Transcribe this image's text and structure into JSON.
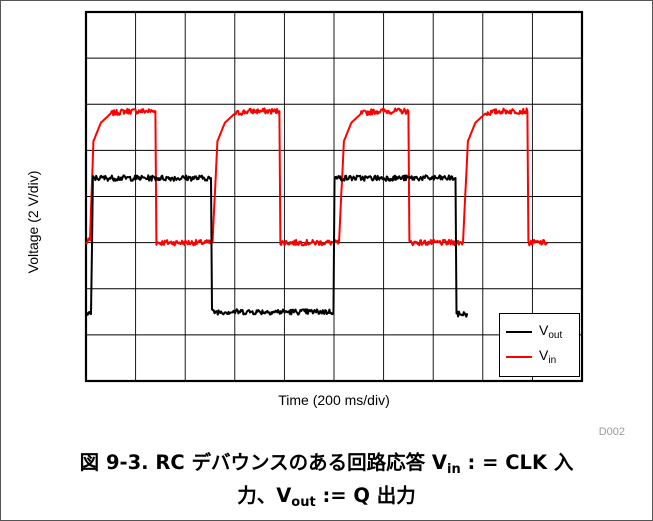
{
  "chart_data": {
    "type": "line",
    "ylabel": "Voltage (2 V/div)",
    "xlabel": "Time (200 ms/div)",
    "grid": true,
    "xlim": [
      0,
      10
    ],
    "ylim": [
      0,
      8
    ],
    "legend_position": "bottom-right",
    "series": [
      {
        "name": "Vin",
        "name_parts": [
          "V",
          "in"
        ],
        "color": "#ff0000",
        "description": "square wave, ~2.5 div amplitude, rise with RC",
        "points": [
          [
            0,
            3.0
          ],
          [
            0.08,
            3.05
          ],
          [
            0.15,
            5.2
          ],
          [
            0.3,
            5.6
          ],
          [
            0.5,
            5.8
          ],
          [
            0.8,
            5.85
          ],
          [
            1.4,
            5.85
          ],
          [
            1.42,
            3.0
          ],
          [
            2.55,
            3.0
          ],
          [
            2.65,
            5.2
          ],
          [
            2.8,
            5.6
          ],
          [
            3.0,
            5.8
          ],
          [
            3.3,
            5.85
          ],
          [
            3.9,
            5.85
          ],
          [
            3.92,
            3.0
          ],
          [
            5.1,
            3.0
          ],
          [
            5.2,
            5.2
          ],
          [
            5.35,
            5.6
          ],
          [
            5.55,
            5.8
          ],
          [
            5.85,
            5.85
          ],
          [
            6.5,
            5.85
          ],
          [
            6.52,
            3.0
          ],
          [
            7.6,
            3.0
          ],
          [
            7.7,
            5.2
          ],
          [
            7.85,
            5.6
          ],
          [
            8.05,
            5.8
          ],
          [
            8.35,
            5.85
          ],
          [
            8.9,
            5.85
          ],
          [
            8.92,
            3.0
          ],
          [
            9.3,
            3.0
          ]
        ]
      },
      {
        "name": "Vout",
        "name_parts": [
          "V",
          "out"
        ],
        "color": "#000000",
        "description": "square wave, ~2.5 div amplitude, sharp edges",
        "points": [
          [
            0,
            1.45
          ],
          [
            0.1,
            1.45
          ],
          [
            0.14,
            4.4
          ],
          [
            2.52,
            4.4
          ],
          [
            2.54,
            1.5
          ],
          [
            4.99,
            1.5
          ],
          [
            5.01,
            4.4
          ],
          [
            7.45,
            4.4
          ],
          [
            7.47,
            1.45
          ],
          [
            7.7,
            1.45
          ]
        ]
      }
    ]
  },
  "figure_code": "D002",
  "caption": {
    "line1_prefix": "図 9-3. RC デバウンスのある回路応答 V",
    "line1_sub": "in",
    "line1_suffix": " : = CLK 入",
    "line2_prefix": "力、V",
    "line2_sub": "out",
    "line2_suffix": " := Q 出力"
  },
  "colors": {
    "vin": "#ff0000",
    "vout": "#000000",
    "grid": "#000000",
    "caption_text": "#000000"
  }
}
